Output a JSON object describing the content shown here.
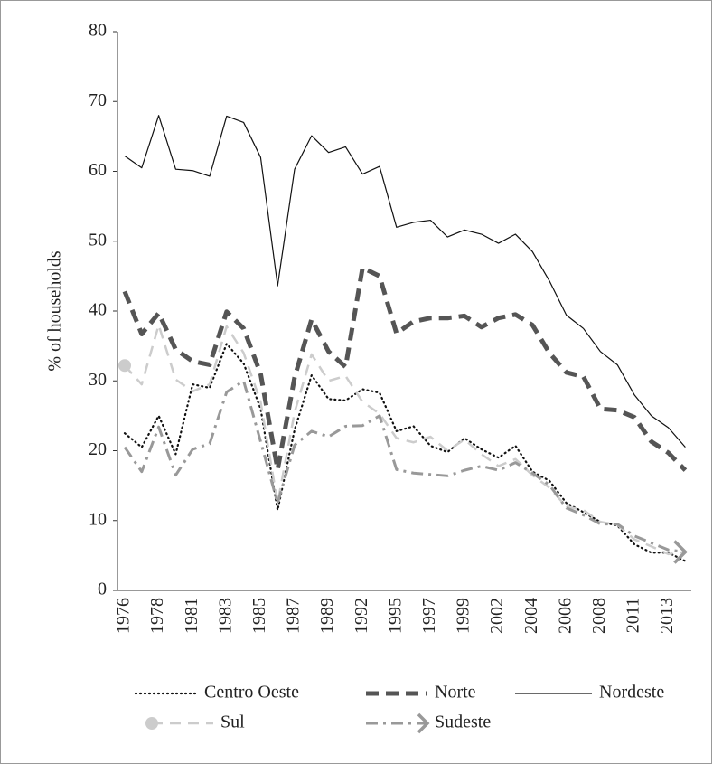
{
  "chart_data": {
    "type": "line",
    "y_label": "% of households",
    "categories": [
      "1976",
      null,
      "1978",
      null,
      "1981",
      null,
      "1983",
      null,
      "1985",
      null,
      "1987",
      null,
      "1989",
      null,
      "1992",
      null,
      "1995",
      null,
      "1997",
      null,
      "1999",
      null,
      "2002",
      null,
      "2004",
      null,
      "2006",
      null,
      "2008",
      null,
      "2011",
      null,
      "2013",
      null
    ],
    "ylim": [
      0,
      80
    ],
    "yticks": [
      0,
      10,
      20,
      30,
      40,
      50,
      60,
      70,
      80
    ],
    "grid": false,
    "legend": "bottom",
    "series": [
      {
        "name": "Centro Oeste",
        "color": "#111111",
        "style": "dotted",
        "values": [
          22.5,
          20.5,
          25,
          19.5,
          29.5,
          29,
          35.3,
          32.5,
          26,
          11.5,
          23,
          30.8,
          27.4,
          27.2,
          28.8,
          28.3,
          22.8,
          23.5,
          20.7,
          19.8,
          21.8,
          20.2,
          19,
          20.7,
          17,
          15.7,
          12.5,
          11.2,
          9.8,
          9.3,
          6.6,
          5.4,
          5.4,
          4.2
        ]
      },
      {
        "name": "Norte",
        "color": "#555555",
        "style": "heavy-dashed",
        "values": [
          42.8,
          36.7,
          39.7,
          34.5,
          32.8,
          32.3,
          39.9,
          37.5,
          31,
          17.3,
          30.5,
          38.8,
          34.2,
          32,
          46.2,
          45,
          36.8,
          38.5,
          39,
          39,
          39.3,
          37.7,
          39,
          39.5,
          38,
          34,
          31.2,
          30.6,
          26,
          25.8,
          24.8,
          21.3,
          19.7,
          17.2
        ]
      },
      {
        "name": "Nordeste",
        "color": "#111111",
        "style": "solid",
        "values": [
          62.2,
          60.5,
          68,
          60.3,
          60.1,
          59.3,
          67.9,
          67,
          62,
          43.6,
          60.3,
          65.1,
          62.7,
          63.5,
          59.6,
          60.7,
          52,
          52.7,
          53,
          50.6,
          51.6,
          51,
          49.7,
          51,
          48.5,
          44.3,
          39.4,
          37.5,
          34.2,
          32.3,
          28,
          25,
          23.3,
          20.5
        ]
      },
      {
        "name": "Sul",
        "color": "#cccccc",
        "style": "dashed",
        "marker": "start-circle",
        "values": [
          32.2,
          29.5,
          38,
          30.2,
          28.5,
          29.5,
          37.8,
          34,
          27,
          12.5,
          25.5,
          33.8,
          30,
          30.7,
          27,
          25.3,
          21.8,
          21.2,
          22,
          20,
          21.6,
          19.5,
          17.8,
          18.8,
          16.5,
          14.7,
          12,
          11.5,
          9.8,
          9.4,
          7.3,
          6.3,
          5.2,
          5.5
        ]
      },
      {
        "name": "Sudeste",
        "color": "#999999",
        "style": "dash-dot",
        "marker": "end-arrow",
        "values": [
          20.5,
          17,
          23.4,
          16.5,
          20.2,
          21,
          28.4,
          30,
          21.3,
          12.5,
          20.8,
          22.8,
          22,
          23.5,
          23.6,
          25,
          17.3,
          16.8,
          16.6,
          16.4,
          17.2,
          17.8,
          17.2,
          18.3,
          16.8,
          15.1,
          11.8,
          10.8,
          9.5,
          9.5,
          7.8,
          6.8,
          5.8,
          5.5
        ]
      }
    ]
  }
}
